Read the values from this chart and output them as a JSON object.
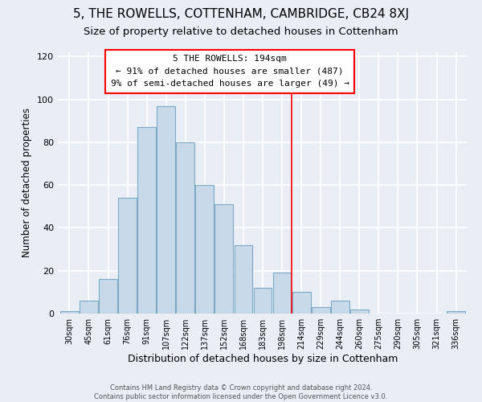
{
  "title": "5, THE ROWELLS, COTTENHAM, CAMBRIDGE, CB24 8XJ",
  "subtitle": "Size of property relative to detached houses in Cottenham",
  "xlabel": "Distribution of detached houses by size in Cottenham",
  "ylabel": "Number of detached properties",
  "bar_labels": [
    "30sqm",
    "45sqm",
    "61sqm",
    "76sqm",
    "91sqm",
    "107sqm",
    "122sqm",
    "137sqm",
    "152sqm",
    "168sqm",
    "183sqm",
    "198sqm",
    "214sqm",
    "229sqm",
    "244sqm",
    "260sqm",
    "275sqm",
    "290sqm",
    "305sqm",
    "321sqm",
    "336sqm"
  ],
  "bar_heights": [
    1,
    6,
    16,
    54,
    87,
    97,
    80,
    60,
    51,
    32,
    12,
    19,
    10,
    3,
    6,
    2,
    0,
    0,
    0,
    0,
    1
  ],
  "bar_color": "#c8d9ea",
  "bar_edge_color": "#7aaac8",
  "vline_x": 11.5,
  "vline_color": "red",
  "annotation_title": "5 THE ROWELLS: 194sqm",
  "annotation_line1": "← 91% of detached houses are smaller (487)",
  "annotation_line2": "9% of semi-detached houses are larger (49) →",
  "annotation_box_color": "white",
  "annotation_box_edge": "red",
  "ylim": [
    0,
    122
  ],
  "footer1": "Contains HM Land Registry data © Crown copyright and database right 2024.",
  "footer2": "Contains public sector information licensed under the Open Government Licence v3.0.",
  "title_fontsize": 11,
  "subtitle_fontsize": 9.5,
  "xlabel_fontsize": 9,
  "ylabel_fontsize": 8.5,
  "bg_color": "#e8eef4",
  "grid_color": "white"
}
